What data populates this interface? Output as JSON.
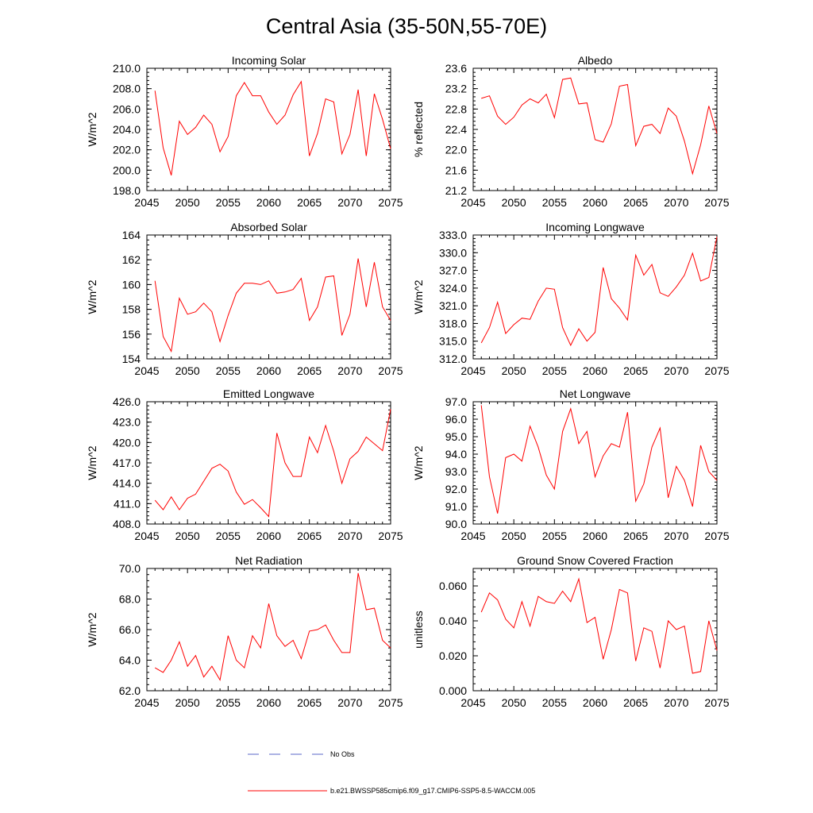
{
  "figure": {
    "title": "Central Asia (35-50N,55-70E)"
  },
  "colors": {
    "model_line": "#ff0000",
    "obs_line": "#5a64c8",
    "axis": "#000000"
  },
  "legend": {
    "obs_label": "No Obs",
    "model_label": "b.e21.BWSSP585cmip6.f09_g17.CMIP6-SSP5-8.5-WACCM.005"
  },
  "chart_data": [
    {
      "type": "line",
      "title": "Incoming Solar",
      "ylabel": "W/m^2",
      "xlim": [
        2045,
        2075
      ],
      "ylim": [
        198.0,
        210.0
      ],
      "xticks": [
        2045,
        2050,
        2055,
        2060,
        2065,
        2070,
        2075
      ],
      "ytick_labels": [
        "198.0",
        "200.0",
        "202.0",
        "204.0",
        "206.0",
        "208.0",
        "210.0"
      ],
      "x": [
        2046,
        2047,
        2048,
        2049,
        2050,
        2051,
        2052,
        2053,
        2054,
        2055,
        2056,
        2057,
        2058,
        2059,
        2060,
        2061,
        2062,
        2063,
        2064,
        2065,
        2066,
        2067,
        2068,
        2069,
        2070,
        2071,
        2072,
        2073,
        2074,
        2075
      ],
      "values": [
        207.8,
        202.2,
        199.5,
        204.8,
        203.5,
        204.2,
        205.4,
        204.5,
        201.8,
        203.3,
        207.3,
        208.6,
        207.3,
        207.3,
        205.7,
        204.5,
        205.4,
        207.4,
        208.7,
        201.4,
        203.6,
        207.0,
        206.7,
        201.6,
        203.5,
        207.9,
        201.4,
        207.5,
        205.0,
        202.1
      ]
    },
    {
      "type": "line",
      "title": "Albedo",
      "ylabel": "% reflected",
      "xlim": [
        2045,
        2075
      ],
      "ylim": [
        21.2,
        23.6
      ],
      "xticks": [
        2045,
        2050,
        2055,
        2060,
        2065,
        2070,
        2075
      ],
      "ytick_labels": [
        "21.2",
        "21.6",
        "22.0",
        "22.4",
        "22.8",
        "23.2",
        "23.6"
      ],
      "x": [
        2046,
        2047,
        2048,
        2049,
        2050,
        2051,
        2052,
        2053,
        2054,
        2055,
        2056,
        2057,
        2058,
        2059,
        2060,
        2061,
        2062,
        2063,
        2064,
        2065,
        2066,
        2067,
        2068,
        2069,
        2070,
        2071,
        2072,
        2073,
        2074,
        2075
      ],
      "values": [
        23.01,
        23.06,
        22.66,
        22.5,
        22.64,
        22.88,
        23.0,
        22.92,
        23.09,
        22.63,
        23.38,
        23.41,
        22.9,
        22.92,
        22.2,
        22.15,
        22.51,
        23.25,
        23.28,
        22.08,
        22.46,
        22.5,
        22.32,
        22.82,
        22.66,
        22.17,
        21.53,
        22.1,
        22.86,
        22.32
      ]
    },
    {
      "type": "line",
      "title": "Absorbed Solar",
      "ylabel": "W/m^2",
      "xlim": [
        2045,
        2075
      ],
      "ylim": [
        154,
        164
      ],
      "xticks": [
        2045,
        2050,
        2055,
        2060,
        2065,
        2070,
        2075
      ],
      "ytick_labels": [
        "154",
        "156",
        "158",
        "160",
        "162",
        "164"
      ],
      "x": [
        2046,
        2047,
        2048,
        2049,
        2050,
        2051,
        2052,
        2053,
        2054,
        2055,
        2056,
        2057,
        2058,
        2059,
        2060,
        2061,
        2062,
        2063,
        2064,
        2065,
        2066,
        2067,
        2068,
        2069,
        2070,
        2071,
        2072,
        2073,
        2074,
        2075
      ],
      "values": [
        160.3,
        155.8,
        154.6,
        158.9,
        157.6,
        157.8,
        158.5,
        157.8,
        155.4,
        157.5,
        159.3,
        160.1,
        160.1,
        160.0,
        160.3,
        159.3,
        159.4,
        159.6,
        160.5,
        157.1,
        158.2,
        160.6,
        160.7,
        155.9,
        157.6,
        162.1,
        158.2,
        161.8,
        158.2,
        157.1
      ]
    },
    {
      "type": "line",
      "title": "Incoming Longwave",
      "ylabel": "W/m^2",
      "xlim": [
        2045,
        2075
      ],
      "ylim": [
        312.0,
        333.0
      ],
      "xticks": [
        2045,
        2050,
        2055,
        2060,
        2065,
        2070,
        2075
      ],
      "ytick_labels": [
        "312.0",
        "315.0",
        "318.0",
        "321.0",
        "324.0",
        "327.0",
        "330.0",
        "333.0"
      ],
      "x": [
        2046,
        2047,
        2048,
        2049,
        2050,
        2051,
        2052,
        2053,
        2054,
        2055,
        2056,
        2057,
        2058,
        2059,
        2060,
        2061,
        2062,
        2063,
        2064,
        2065,
        2066,
        2067,
        2068,
        2069,
        2070,
        2071,
        2072,
        2073,
        2074,
        2075
      ],
      "values": [
        314.7,
        317.3,
        321.6,
        316.3,
        317.8,
        318.9,
        318.7,
        321.8,
        324.0,
        323.8,
        317.3,
        314.3,
        317.1,
        315.0,
        316.5,
        327.5,
        322.2,
        320.6,
        318.6,
        329.6,
        326.2,
        328.0,
        323.2,
        322.6,
        324.2,
        326.2,
        329.9,
        325.2,
        325.8,
        332.7
      ]
    },
    {
      "type": "line",
      "title": "Emitted Longwave",
      "ylabel": "W/m^2",
      "xlim": [
        2045,
        2075
      ],
      "ylim": [
        408.0,
        426.0
      ],
      "xticks": [
        2045,
        2050,
        2055,
        2060,
        2065,
        2070,
        2075
      ],
      "ytick_labels": [
        "408.0",
        "411.0",
        "414.0",
        "417.0",
        "420.0",
        "423.0",
        "426.0"
      ],
      "x": [
        2046,
        2047,
        2048,
        2049,
        2050,
        2051,
        2052,
        2053,
        2054,
        2055,
        2056,
        2057,
        2058,
        2059,
        2060,
        2061,
        2062,
        2063,
        2064,
        2065,
        2066,
        2067,
        2068,
        2069,
        2070,
        2071,
        2072,
        2073,
        2074,
        2075
      ],
      "values": [
        411.5,
        410.1,
        412.0,
        410.1,
        411.8,
        412.4,
        414.3,
        416.2,
        416.8,
        415.8,
        412.7,
        410.9,
        411.6,
        410.4,
        409.1,
        421.4,
        417.0,
        415.0,
        415.0,
        420.8,
        418.5,
        422.5,
        418.7,
        414.0,
        417.6,
        418.7,
        420.8,
        419.8,
        418.8,
        424.9
      ]
    },
    {
      "type": "line",
      "title": "Net Longwave",
      "ylabel": "W/m^2",
      "xlim": [
        2045,
        2075
      ],
      "ylim": [
        90.0,
        97.0
      ],
      "xticks": [
        2045,
        2050,
        2055,
        2060,
        2065,
        2070,
        2075
      ],
      "ytick_labels": [
        "90.0",
        "91.0",
        "92.0",
        "93.0",
        "94.0",
        "95.0",
        "96.0",
        "97.0"
      ],
      "x": [
        2046,
        2047,
        2048,
        2049,
        2050,
        2051,
        2052,
        2053,
        2054,
        2055,
        2056,
        2057,
        2058,
        2059,
        2060,
        2061,
        2062,
        2063,
        2064,
        2065,
        2066,
        2067,
        2068,
        2069,
        2070,
        2071,
        2072,
        2073,
        2074,
        2075
      ],
      "values": [
        96.8,
        92.7,
        90.6,
        93.8,
        94.0,
        93.6,
        95.6,
        94.4,
        92.8,
        92.0,
        95.3,
        96.6,
        94.6,
        95.3,
        92.7,
        93.9,
        94.6,
        94.4,
        96.4,
        91.3,
        92.3,
        94.4,
        95.5,
        91.5,
        93.3,
        92.5,
        91.0,
        94.5,
        93.0,
        92.5
      ]
    },
    {
      "type": "line",
      "title": "Net Radiation",
      "ylabel": "W/m^2",
      "xlim": [
        2045,
        2075
      ],
      "ylim": [
        62.0,
        70.0
      ],
      "xticks": [
        2045,
        2050,
        2055,
        2060,
        2065,
        2070,
        2075
      ],
      "ytick_labels": [
        "62.0",
        "64.0",
        "66.0",
        "68.0",
        "70.0"
      ],
      "x": [
        2046,
        2047,
        2048,
        2049,
        2050,
        2051,
        2052,
        2053,
        2054,
        2055,
        2056,
        2057,
        2058,
        2059,
        2060,
        2061,
        2062,
        2063,
        2064,
        2065,
        2066,
        2067,
        2068,
        2069,
        2070,
        2071,
        2072,
        2073,
        2074,
        2075
      ],
      "values": [
        63.5,
        63.2,
        64.0,
        65.2,
        63.6,
        64.3,
        62.9,
        63.6,
        62.7,
        65.6,
        64.0,
        63.5,
        65.6,
        64.8,
        67.7,
        65.6,
        64.9,
        65.3,
        64.1,
        65.9,
        66.0,
        66.3,
        65.3,
        64.5,
        64.5,
        69.7,
        67.3,
        67.4,
        65.3,
        64.8
      ]
    },
    {
      "type": "line",
      "title": "Ground Snow Covered Fraction",
      "ylabel": "unitless",
      "xlim": [
        2045,
        2075
      ],
      "ylim": [
        0.0,
        0.07
      ],
      "xticks": [
        2045,
        2050,
        2055,
        2060,
        2065,
        2070,
        2075
      ],
      "ytick_labels": [
        "0.000",
        "0.020",
        "0.040",
        "0.060"
      ],
      "x": [
        2046,
        2047,
        2048,
        2049,
        2050,
        2051,
        2052,
        2053,
        2054,
        2055,
        2056,
        2057,
        2058,
        2059,
        2060,
        2061,
        2062,
        2063,
        2064,
        2065,
        2066,
        2067,
        2068,
        2069,
        2070,
        2071,
        2072,
        2073,
        2074,
        2075
      ],
      "values": [
        0.045,
        0.056,
        0.052,
        0.041,
        0.036,
        0.051,
        0.037,
        0.054,
        0.051,
        0.05,
        0.057,
        0.051,
        0.064,
        0.039,
        0.042,
        0.018,
        0.035,
        0.058,
        0.056,
        0.017,
        0.036,
        0.034,
        0.013,
        0.04,
        0.035,
        0.037,
        0.01,
        0.011,
        0.04,
        0.023
      ]
    }
  ]
}
